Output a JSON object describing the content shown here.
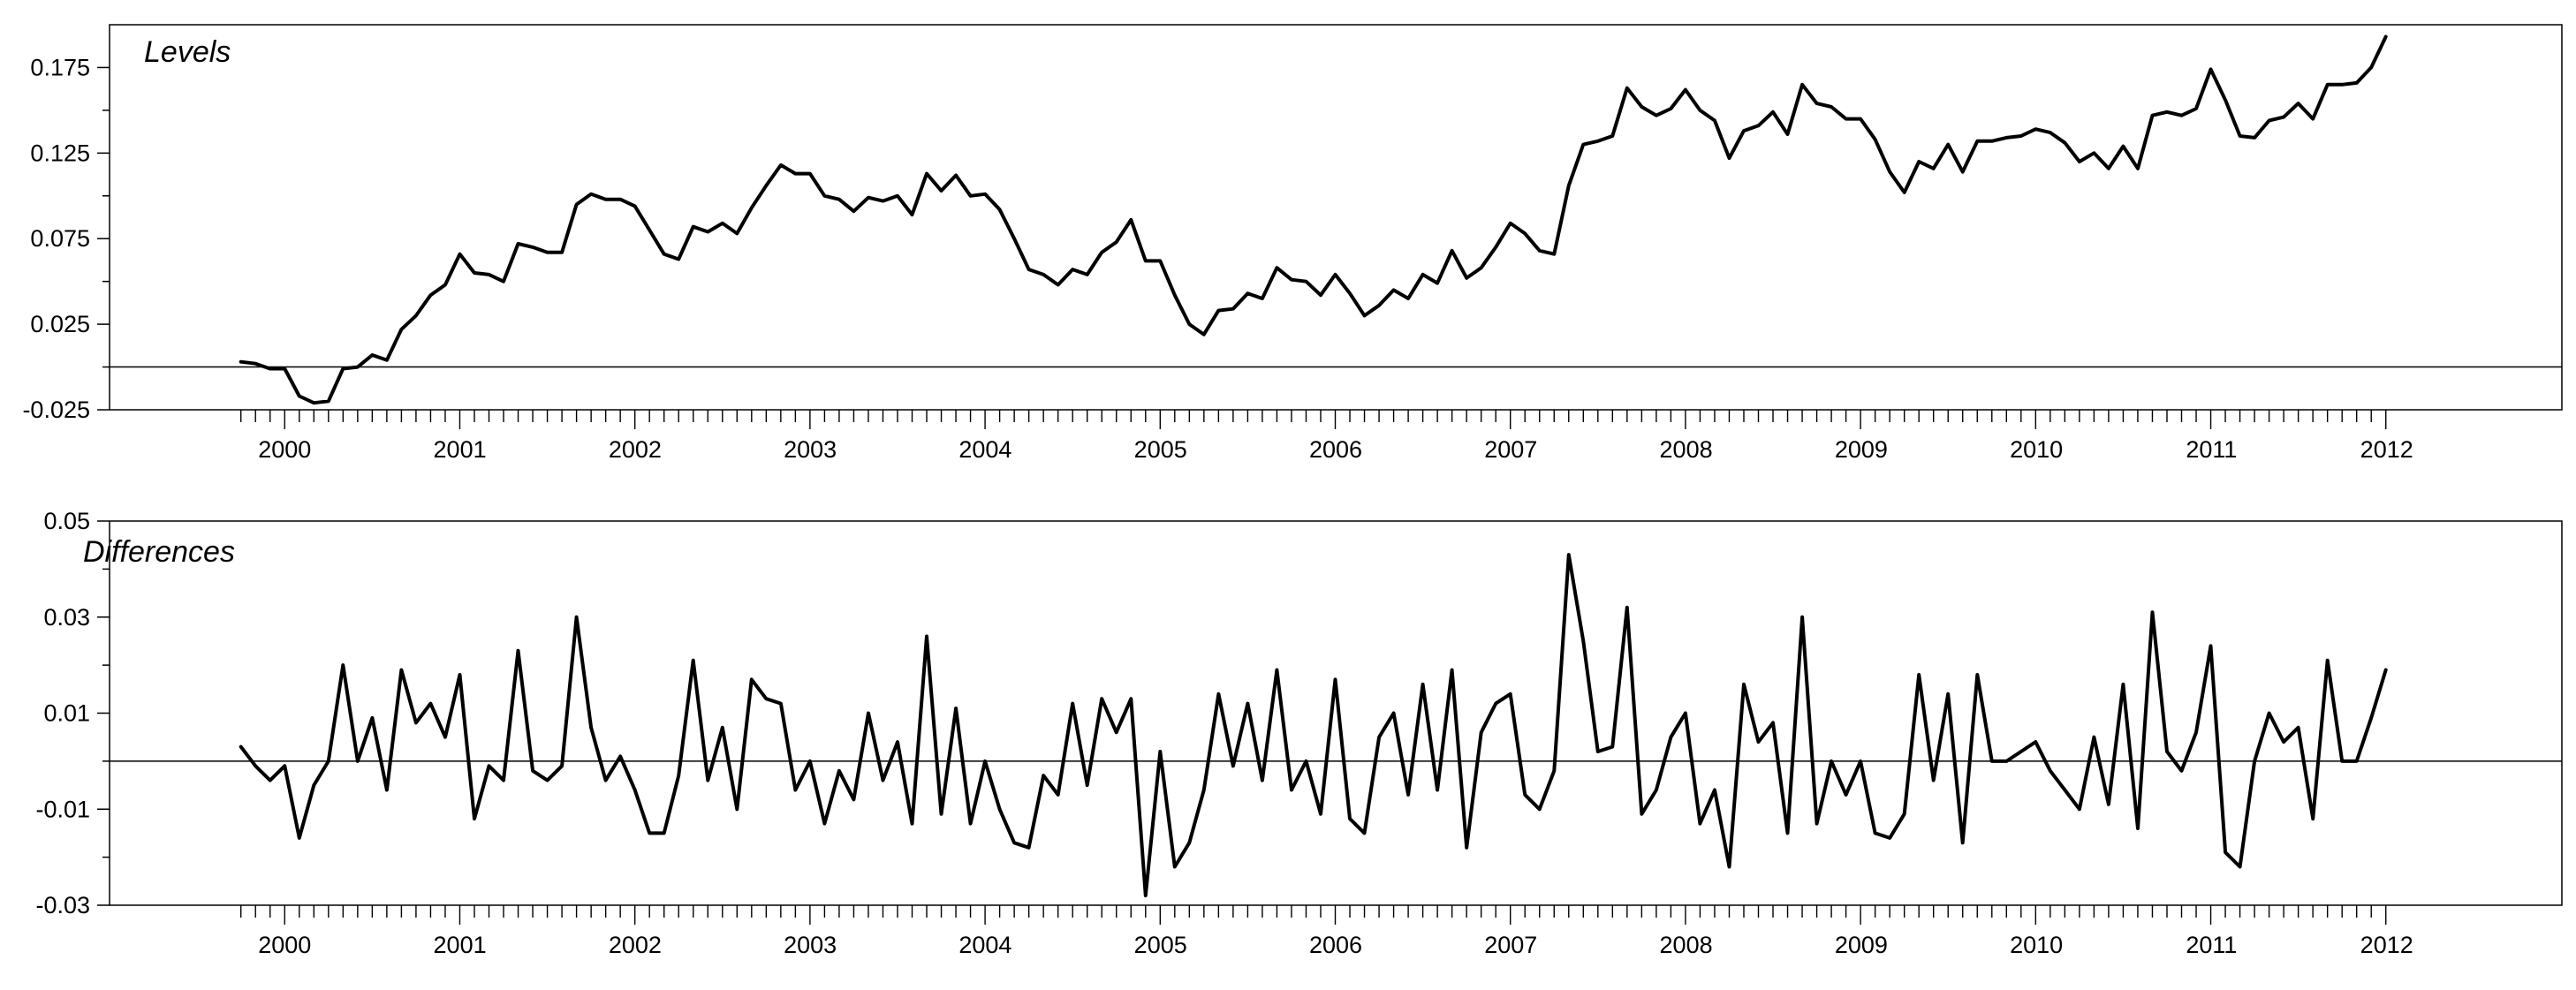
{
  "chart_data": [
    {
      "type": "line",
      "title": "Levels",
      "xlabel": "",
      "ylabel": "",
      "ylim": [
        -0.025,
        0.2
      ],
      "yticks": [
        -0.025,
        0.025,
        0.075,
        0.125,
        0.175
      ],
      "ytick_labels": [
        "-0.025",
        "0.025",
        "0.075",
        "0.125",
        "0.175"
      ],
      "xlim": [
        1999.0,
        2013.0
      ],
      "xticks": [
        2000,
        2001,
        2002,
        2003,
        2004,
        2005,
        2006,
        2007,
        2008,
        2009,
        2010,
        2011,
        2012
      ],
      "xtick_labels": [
        "2000",
        "2001",
        "2002",
        "2003",
        "2004",
        "2005",
        "2006",
        "2007",
        "2008",
        "2009",
        "2010",
        "2011",
        "2012"
      ],
      "reference_line": 0,
      "grid": false,
      "series": [
        {
          "x_start": 1999.75,
          "x_step": 0.0833,
          "values": [
            0.003,
            0.002,
            -0.001,
            -0.001,
            -0.017,
            -0.021,
            -0.02,
            -0.001,
            0.0,
            0.007,
            0.004,
            0.022,
            0.03,
            0.042,
            0.048,
            0.066,
            0.055,
            0.054,
            0.05,
            0.072,
            0.07,
            0.067,
            0.067,
            0.095,
            0.101,
            0.098,
            0.098,
            0.094,
            0.08,
            0.066,
            0.063,
            0.082,
            0.079,
            0.084,
            0.078,
            0.093,
            0.106,
            0.118,
            0.113,
            0.113,
            0.1,
            0.098,
            0.091,
            0.099,
            0.097,
            0.1,
            0.089,
            0.113,
            0.103,
            0.112,
            0.1,
            0.101,
            0.092,
            0.075,
            0.057,
            0.054,
            0.048,
            0.057,
            0.054,
            0.067,
            0.073,
            0.086,
            0.062,
            0.062,
            0.042,
            0.025,
            0.019,
            0.033,
            0.034,
            0.043,
            0.04,
            0.058,
            0.051,
            0.05,
            0.042,
            0.054,
            0.043,
            0.03,
            0.036,
            0.045,
            0.04,
            0.054,
            0.049,
            0.068,
            0.052,
            0.058,
            0.07,
            0.084,
            0.078,
            0.068,
            0.066,
            0.106,
            0.13,
            0.132,
            0.135,
            0.163,
            0.152,
            0.147,
            0.151,
            0.162,
            0.15,
            0.144,
            0.122,
            0.138,
            0.141,
            0.149,
            0.136,
            0.165,
            0.154,
            0.152,
            0.145,
            0.145,
            0.133,
            0.114,
            0.102,
            0.12,
            0.116,
            0.13,
            0.114,
            0.132,
            0.132,
            0.134,
            0.135,
            0.139,
            0.137,
            0.131,
            0.12,
            0.125,
            0.116,
            0.129,
            0.116,
            0.147,
            0.149,
            0.147,
            0.151,
            0.174,
            0.156,
            0.135,
            0.134,
            0.144,
            0.146,
            0.154,
            0.145,
            0.165,
            0.165,
            0.166,
            0.175,
            0.193
          ]
        }
      ]
    },
    {
      "type": "line",
      "title": "Differences",
      "xlabel": "",
      "ylabel": "",
      "ylim": [
        -0.03,
        0.05
      ],
      "yticks": [
        -0.03,
        -0.01,
        0.01,
        0.03,
        0.05
      ],
      "ytick_labels": [
        "-0.03",
        "-0.01",
        "0.01",
        "0.03",
        "0.05"
      ],
      "xlim": [
        1999.0,
        2013.0
      ],
      "xticks": [
        2000,
        2001,
        2002,
        2003,
        2004,
        2005,
        2006,
        2007,
        2008,
        2009,
        2010,
        2011,
        2012
      ],
      "xtick_labels": [
        "2000",
        "2001",
        "2002",
        "2003",
        "2004",
        "2005",
        "2006",
        "2007",
        "2008",
        "2009",
        "2010",
        "2011",
        "2012"
      ],
      "reference_line": 0,
      "grid": false,
      "series": [
        {
          "x_start": 1999.75,
          "x_step": 0.0833,
          "values": [
            0.003,
            -0.001,
            -0.004,
            -0.001,
            -0.016,
            -0.005,
            0.0,
            0.02,
            0.0,
            0.009,
            -0.006,
            0.019,
            0.008,
            0.012,
            0.005,
            0.018,
            -0.012,
            -0.001,
            -0.004,
            0.023,
            -0.002,
            -0.004,
            -0.001,
            0.03,
            0.007,
            -0.004,
            0.001,
            -0.006,
            -0.015,
            -0.015,
            -0.003,
            0.021,
            -0.004,
            0.007,
            -0.01,
            0.017,
            0.013,
            0.012,
            -0.006,
            0.0,
            -0.013,
            -0.002,
            -0.008,
            0.01,
            -0.004,
            0.004,
            -0.013,
            0.026,
            -0.011,
            0.011,
            -0.013,
            0.0,
            -0.01,
            -0.017,
            -0.018,
            -0.003,
            -0.007,
            0.012,
            -0.005,
            0.013,
            0.006,
            0.013,
            -0.028,
            0.002,
            -0.022,
            -0.017,
            -0.006,
            0.014,
            -0.001,
            0.012,
            -0.004,
            0.019,
            -0.006,
            0.0,
            -0.011,
            0.017,
            -0.012,
            -0.015,
            0.005,
            0.01,
            -0.007,
            0.016,
            -0.006,
            0.019,
            -0.018,
            0.006,
            0.012,
            0.014,
            -0.007,
            -0.01,
            -0.002,
            0.043,
            0.025,
            0.002,
            0.003,
            0.032,
            -0.011,
            -0.006,
            0.005,
            0.01,
            -0.013,
            -0.006,
            -0.022,
            0.016,
            0.004,
            0.008,
            -0.015,
            0.03,
            -0.013,
            0.0,
            -0.007,
            0.0,
            -0.015,
            -0.016,
            -0.011,
            0.018,
            -0.004,
            0.014,
            -0.017,
            0.018,
            0.0,
            0.0,
            0.002,
            0.004,
            -0.002,
            -0.006,
            -0.01,
            0.005,
            -0.009,
            0.016,
            -0.014,
            0.031,
            0.002,
            -0.002,
            0.006,
            0.024,
            -0.019,
            -0.022,
            0.0,
            0.01,
            0.004,
            0.007,
            -0.012,
            0.021,
            0.0,
            0.0,
            0.009,
            0.019
          ]
        }
      ]
    }
  ]
}
